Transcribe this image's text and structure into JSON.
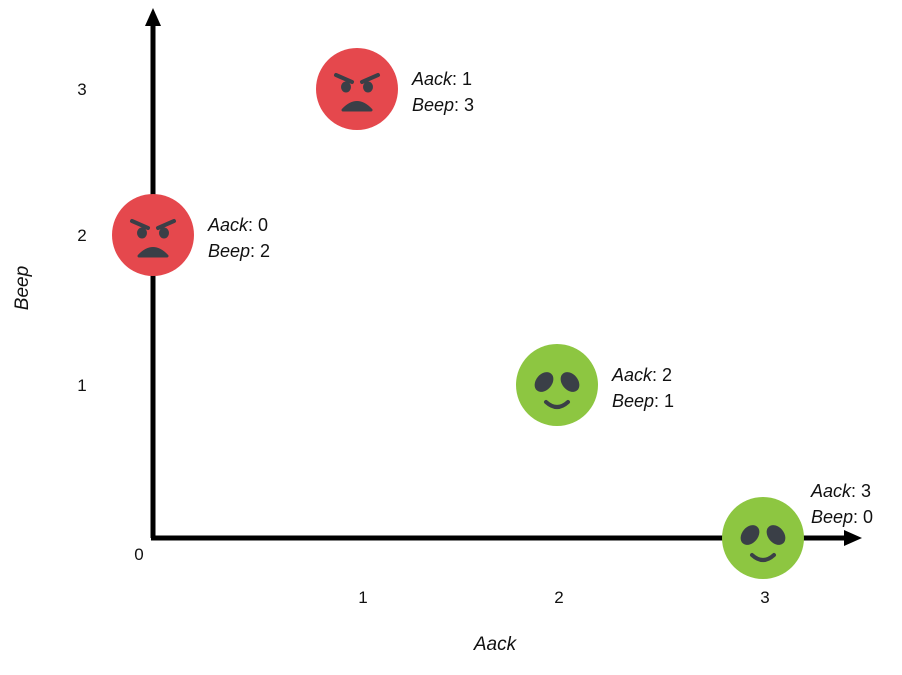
{
  "chart_data": {
    "type": "scatter",
    "title": "",
    "xlabel": "Aack",
    "ylabel": "Beep",
    "xlim": [
      0,
      3
    ],
    "ylim": [
      0,
      3
    ],
    "origin_label": "0",
    "x_ticks": [
      "1",
      "2",
      "3"
    ],
    "y_ticks": [
      "1",
      "2",
      "3"
    ],
    "grid": false,
    "legend": "none",
    "annotation_keys": {
      "x": "Aack",
      "y": "Beep"
    },
    "points": [
      {
        "x": 0,
        "y": 2,
        "icon": "angry-face-icon",
        "color": "#e5484d",
        "x_text": "0",
        "y_text": "2"
      },
      {
        "x": 1,
        "y": 3,
        "icon": "angry-face-icon",
        "color": "#e5484d",
        "x_text": "1",
        "y_text": "3"
      },
      {
        "x": 2,
        "y": 1,
        "icon": "alien-face-icon",
        "color": "#8dc641",
        "x_text": "2",
        "y_text": "1"
      },
      {
        "x": 3,
        "y": 0,
        "icon": "alien-face-icon",
        "color": "#8dc641",
        "x_text": "3",
        "y_text": "0"
      }
    ]
  }
}
